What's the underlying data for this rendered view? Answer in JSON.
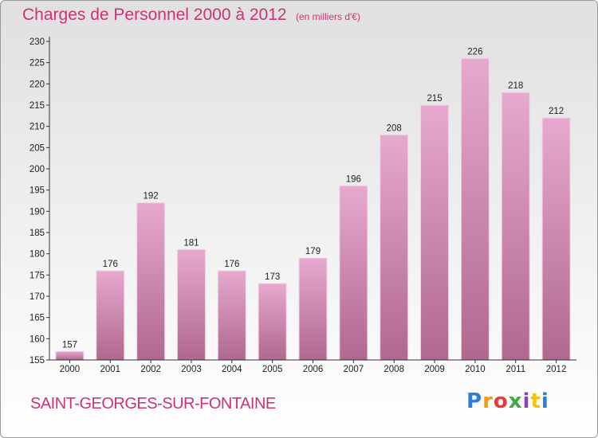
{
  "title": "Charges de Personnel 2000 à 2012",
  "subtitle": "(en milliers d'€)",
  "commune": "SAINT-GEORGES-SUR-FONTAINE",
  "logo": {
    "letters": [
      "P",
      "r",
      "o",
      "x",
      "i",
      "t",
      "i"
    ],
    "colors": [
      "#2d7fd6",
      "#f39c12",
      "#e23c3c",
      "#3fa83f",
      "#8e44ad",
      "#f1c40f",
      "#2d7fd6"
    ]
  },
  "colors": {
    "title": "#cc3377",
    "bar_top": "#e7a9cf",
    "bar_bottom": "#b0688f"
  },
  "chart_data": {
    "type": "bar",
    "categories": [
      "2000",
      "2001",
      "2002",
      "2003",
      "2004",
      "2005",
      "2006",
      "2007",
      "2008",
      "2009",
      "2010",
      "2011",
      "2012"
    ],
    "values": [
      157,
      176,
      192,
      181,
      176,
      173,
      179,
      196,
      208,
      215,
      226,
      218,
      212
    ],
    "ylim": [
      155,
      230
    ],
    "yticks": [
      155,
      160,
      165,
      170,
      175,
      180,
      185,
      190,
      195,
      200,
      205,
      210,
      215,
      220,
      225,
      230
    ],
    "grid": false,
    "data_labels": true
  }
}
